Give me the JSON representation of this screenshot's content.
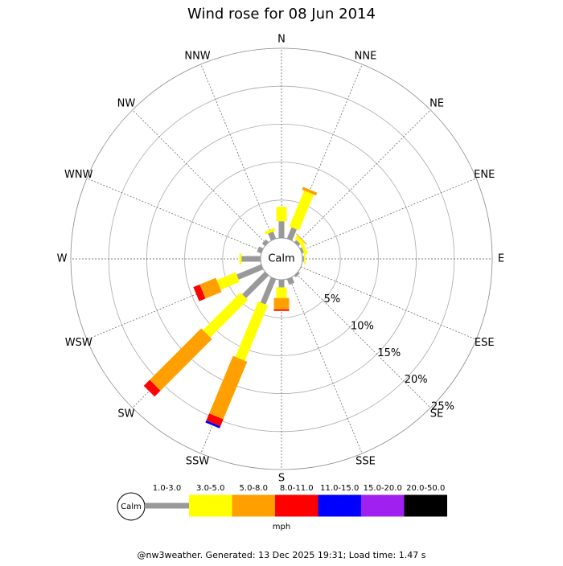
{
  "chart_data": {
    "type": "windrose",
    "title": "Wind rose for 08 Jun 2014",
    "center_label": "Calm",
    "unit": "mph",
    "caption": "@nw3weather. Generated: 13 Dec 2025 19:31; Load time: 1.47 s",
    "directions": [
      "N",
      "NNE",
      "NE",
      "ENE",
      "E",
      "ESE",
      "SE",
      "SSE",
      "S",
      "SSW",
      "SW",
      "WSW",
      "W",
      "WNW",
      "NW",
      "NNW"
    ],
    "ylim": [
      0,
      25
    ],
    "yticks": [
      {
        "value": 5,
        "label": "5%"
      },
      {
        "value": 10,
        "label": "10%"
      },
      {
        "value": 15,
        "label": "15%"
      },
      {
        "value": 20,
        "label": "20%"
      },
      {
        "value": 25,
        "label": "25%"
      }
    ],
    "series": [
      {
        "name": "1.0-3.0",
        "color": "#999999",
        "values": [
          2.2,
          1.6,
          0.4,
          0.3,
          0.2,
          0,
          0.3,
          0.8,
          1.0,
          3.6,
          4.2,
          3.5,
          2.5,
          0.6,
          0.5,
          1.0
        ]
      },
      {
        "name": "3.0-5.0",
        "color": "#ffff00",
        "values": [
          1.9,
          5.1,
          0.5,
          0.4,
          0.2,
          0,
          0,
          0,
          1.4,
          7.9,
          7.0,
          2.7,
          0.3,
          0,
          0,
          0.4
        ]
      },
      {
        "name": "5.0-8.0",
        "color": "#ffa000",
        "values": [
          0,
          0.4,
          0.1,
          0,
          0,
          0,
          0,
          0,
          1.5,
          8.2,
          9.6,
          2.3,
          0,
          0,
          0,
          0
        ]
      },
      {
        "name": "8.0-11.0",
        "color": "#ff0000",
        "values": [
          0,
          0,
          0,
          0,
          0,
          0,
          0,
          0,
          0.2,
          1.0,
          1.1,
          0.9,
          0,
          0,
          0,
          0
        ]
      },
      {
        "name": "11.0-15.0",
        "color": "#0000ff",
        "values": [
          0,
          0,
          0,
          0,
          0,
          0,
          0,
          0,
          0,
          0.3,
          0,
          0,
          0,
          0,
          0,
          0
        ]
      },
      {
        "name": "15.0-20.0",
        "color": "#a020f0",
        "values": [
          0,
          0,
          0,
          0,
          0,
          0,
          0,
          0,
          0,
          0,
          0,
          0,
          0,
          0,
          0,
          0
        ]
      },
      {
        "name": "20.0-50.0",
        "color": "#000000",
        "values": [
          0,
          0,
          0,
          0,
          0,
          0,
          0,
          0,
          0,
          0,
          0,
          0,
          0,
          0,
          0,
          0
        ]
      }
    ]
  }
}
